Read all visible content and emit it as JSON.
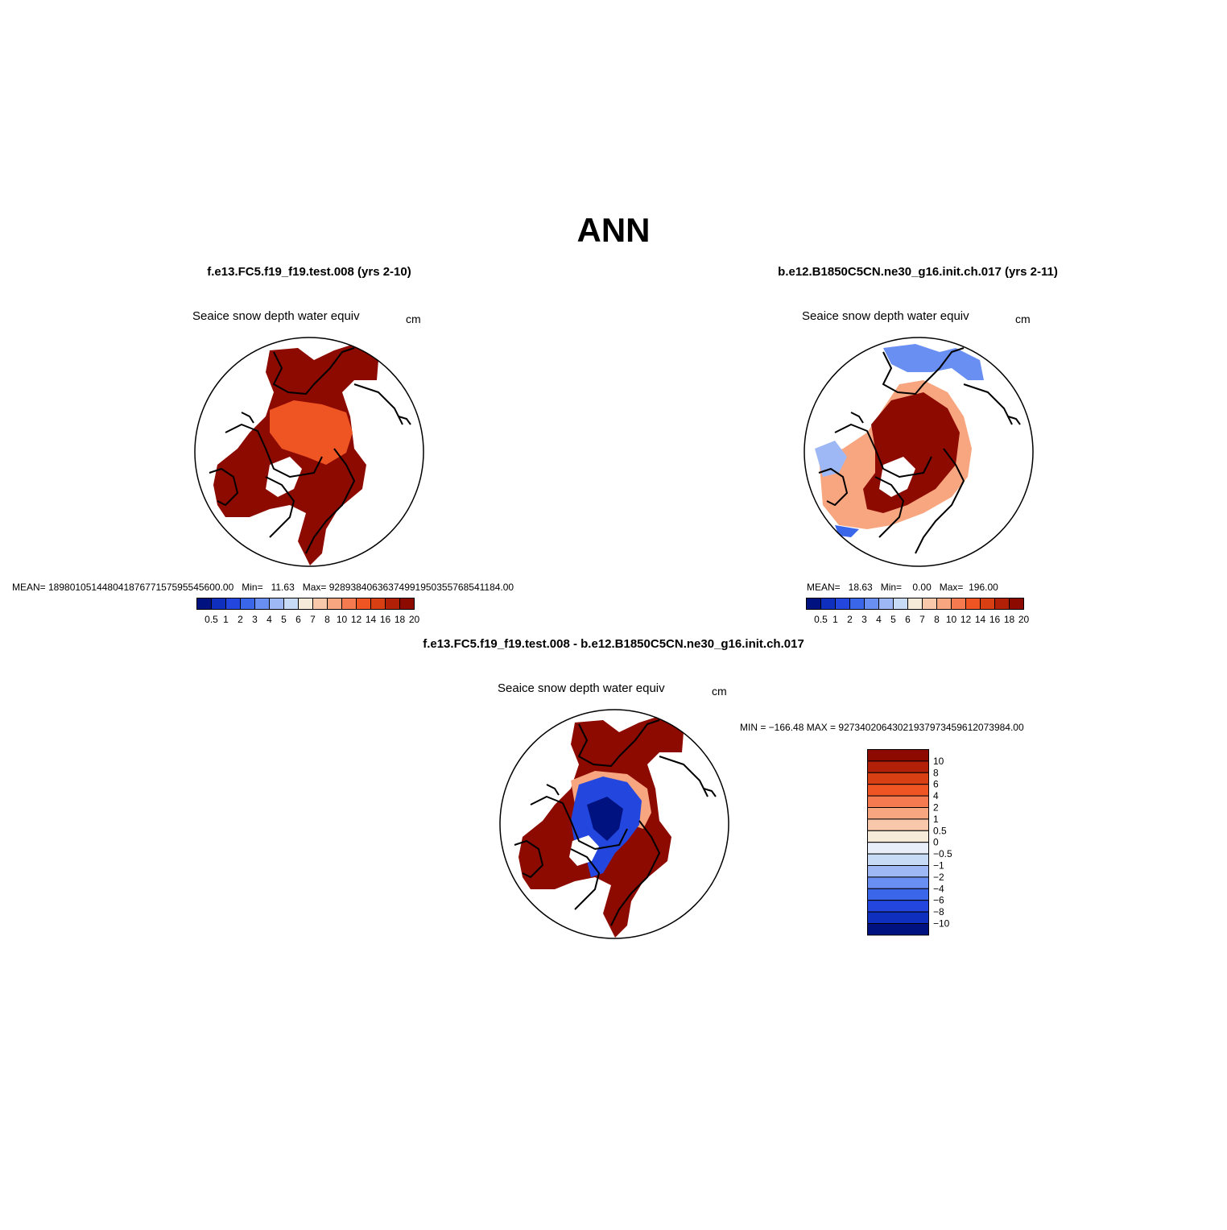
{
  "title": "ANN",
  "colors": {
    "abs_levels": [
      "#00127f",
      "#0f2fbf",
      "#2347de",
      "#3a66ea",
      "#6a8ff2",
      "#9db8f5",
      "#c8dbf6",
      "#f6ead8",
      "#f9c8aa",
      "#f8a680",
      "#f57a4f",
      "#ee5523",
      "#d83f12",
      "#b22008",
      "#8c0a00"
    ],
    "diff_levels": [
      "#8c0a00",
      "#b22008",
      "#d83f12",
      "#ee5523",
      "#f57a4f",
      "#f8a680",
      "#f9c8aa",
      "#f6ead8",
      "#e9eefb",
      "#c8dbf6",
      "#9db8f5",
      "#6a8ff2",
      "#3a66ea",
      "#2347de",
      "#0f2fbf",
      "#00127f"
    ]
  },
  "panels": [
    {
      "run_title": "f.e13.FC5.f19_f19.test.008 (yrs 2-10)",
      "variable": "Seaice snow depth water equiv",
      "units": "cm",
      "stats": "MEAN= 189801051448041876771575955456​00.00   Min=   11.63   Max= 928938406363749919503557685411​84.00"
    },
    {
      "run_title": "b.e12.B1850C5CN.ne30_g16.init.ch.017 (yrs 2-11)",
      "variable": "Seaice snow depth water equiv",
      "units": "cm",
      "stats": "MEAN=   18.63   Min=    0.00   Max=  196.00"
    },
    {
      "run_title": "f.e13.FC5.f19_f19.test.008 - b.e12.B1850C5CN.ne30_g16.init.ch.017",
      "variable": "Seaice snow depth water equiv",
      "units": "cm",
      "stats": "MIN = −166.48 MAX = 927340206430219379734596120739​84.00"
    }
  ],
  "abs_colorbar_labels": [
    "0.5",
    "1",
    "2",
    "3",
    "4",
    "5",
    "6",
    "7",
    "8",
    "10",
    "12",
    "14",
    "16",
    "18",
    "20"
  ],
  "diff_colorbar_labels": [
    "10",
    "8",
    "6",
    "4",
    "2",
    "1",
    "0.5",
    "0",
    "−0.5",
    "−1",
    "−2",
    "−4",
    "−6",
    "−8",
    "−10"
  ]
}
